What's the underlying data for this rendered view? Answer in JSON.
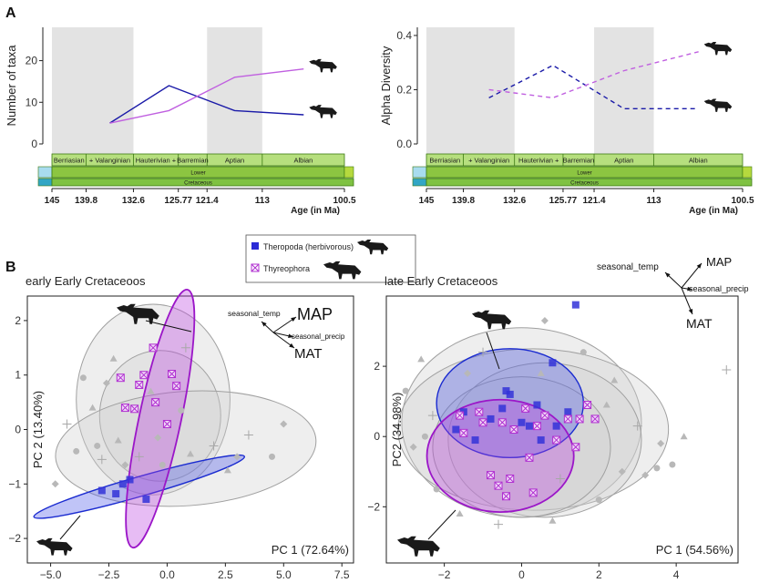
{
  "panel_a_letter": "A",
  "panel_b_letter": "B",
  "legend": {
    "entries": [
      {
        "label": "Theropoda (herbivorous)",
        "color": "#2b2bd6",
        "marker": "filled-square"
      },
      {
        "label": "Thyreophora",
        "color": "#b030d0",
        "marker": "crossed-square"
      }
    ]
  },
  "colors": {
    "theropoda": "#1a1aa8",
    "thyreophora": "#c060e0",
    "theropoda_ellipse_fill": "#4a56e8",
    "thyreophora_ellipse_fill": "#b93fe0",
    "thyreophora_ellipse_stroke": "#9b16c8",
    "background_points": "#b8b8b8",
    "stage_shade": "#e3e3e3",
    "stage_green": "#b6df7e",
    "lower_green": "#8cc541"
  },
  "icons": [
    "dinosaur-silhouette-icon",
    "sauropod-silhouette-icon",
    "theropod-silhouette-icon"
  ],
  "timescale": {
    "stages": [
      "Berriasian",
      "+ Valanginian",
      "Hauterivian +",
      "Barremian",
      "Aptian",
      "Albian"
    ],
    "series": "Lower",
    "period": "Cretaceous",
    "ages": [
      "145",
      "139.8",
      "132.6",
      "125.77",
      "121.4",
      "113",
      "100.5"
    ],
    "xlabel": "Age (in Ma)"
  },
  "chart_data": [
    {
      "type": "line",
      "ylabel": "Number of taxa",
      "yticks": [
        "0",
        "10",
        "20"
      ],
      "ylim": [
        0,
        28
      ],
      "x": [
        136.2,
        127.2,
        117.2,
        106.7
      ],
      "series": [
        {
          "group": "theropoda",
          "style": "solid",
          "values": [
            5,
            14,
            8,
            7
          ]
        },
        {
          "group": "thyreophora",
          "style": "solid",
          "values": [
            5,
            8,
            16,
            18
          ]
        }
      ],
      "shaded_ranges": [
        [
          145,
          132.6
        ],
        [
          121.4,
          113
        ]
      ]
    },
    {
      "type": "line",
      "ylabel": "Alpha Diversity",
      "yticks": [
        "0.0",
        "0.2",
        "0.4"
      ],
      "ylim": [
        0,
        0.43
      ],
      "x": [
        136.2,
        127.2,
        117.2,
        106.7
      ],
      "series": [
        {
          "group": "theropoda",
          "style": "dashed",
          "values": [
            0.17,
            0.29,
            0.13,
            0.13
          ]
        },
        {
          "group": "thyreophora",
          "style": "dashed",
          "values": [
            0.2,
            0.17,
            0.27,
            0.34
          ]
        }
      ],
      "shaded_ranges": [
        [
          145,
          132.6
        ],
        [
          121.4,
          113
        ]
      ]
    },
    {
      "type": "scatter",
      "title": "early Early Cretaceoos",
      "xlabel": "PC 1 (72.64%)",
      "ylabel": "PC 2 (13.40%)",
      "xticks": [
        "−5.0",
        "−2.5",
        "0.0",
        "2.5",
        "5.0",
        "7.5"
      ],
      "xtick_values": [
        -5,
        -2.5,
        0,
        2.5,
        5,
        7.5
      ],
      "yticks": [
        "−2",
        "−1",
        "0",
        "1",
        "2"
      ],
      "ytick_values": [
        -2,
        -1,
        0,
        1,
        2
      ],
      "xlim": [
        -6,
        8
      ],
      "ylim": [
        -2.45,
        2.45
      ],
      "loading_labels": [
        "MAP",
        "seasonal_temp",
        "seasonal_precip",
        "MAT"
      ],
      "ellipses": [
        {
          "group": "other",
          "cx": -0.6,
          "cy": 0.55,
          "rx": 3.3,
          "ry": 1.75,
          "rot": 0
        },
        {
          "group": "other",
          "cx": -0.3,
          "cy": 0.25,
          "rx": 2.6,
          "ry": 1.2,
          "rot": 0
        },
        {
          "group": "other",
          "cx": 0.8,
          "cy": -0.35,
          "rx": 5.6,
          "ry": 1.05,
          "rot": 4
        },
        {
          "group": "theropoda",
          "cx": -1.2,
          "cy": -1.05,
          "rx": 4.7,
          "ry": 0.18,
          "rot": 16
        },
        {
          "group": "thyreophora",
          "cx": -0.3,
          "cy": 0.2,
          "rx": 0.9,
          "ry": 2.42,
          "rot": -12
        }
      ],
      "points": {
        "theropoda": [
          [
            -2.8,
            -1.12
          ],
          [
            -2.2,
            -1.18
          ],
          [
            -1.6,
            -0.92
          ],
          [
            -0.9,
            -1.28
          ],
          [
            -1.9,
            -1.0
          ]
        ],
        "thyreophora": [
          [
            -2.0,
            0.95
          ],
          [
            -0.6,
            1.5
          ],
          [
            0.2,
            1.02
          ],
          [
            -1.2,
            0.82
          ],
          [
            -0.5,
            0.5
          ],
          [
            0.0,
            0.1
          ],
          [
            -1.4,
            0.38
          ],
          [
            0.4,
            0.8
          ],
          [
            -1.0,
            1.0
          ],
          [
            -1.8,
            0.4
          ]
        ],
        "other": [
          [
            -3.6,
            0.95
          ],
          [
            -3.2,
            0.4
          ],
          [
            -4.3,
            0.1
          ],
          [
            -2.6,
            0.85
          ],
          [
            -3.0,
            -0.3
          ],
          [
            -2.3,
            1.3
          ],
          [
            -1.2,
            -0.5
          ],
          [
            -0.4,
            -0.15
          ],
          [
            0.6,
            0.35
          ],
          [
            1.0,
            -0.45
          ],
          [
            -2.8,
            -0.55
          ],
          [
            -1.8,
            -0.65
          ],
          [
            -0.2,
            -0.65
          ],
          [
            2.6,
            -0.75
          ],
          [
            3.5,
            -0.1
          ],
          [
            5.0,
            0.1
          ],
          [
            4.5,
            -0.5
          ],
          [
            -0.7,
            0.7
          ],
          [
            0.8,
            1.5
          ],
          [
            -4.8,
            -1.0
          ],
          [
            -3.9,
            -0.4
          ],
          [
            -2.1,
            -0.2
          ],
          [
            2.0,
            -0.3
          ],
          [
            3.0,
            -0.5
          ]
        ]
      }
    },
    {
      "type": "scatter",
      "title": "late Early Cretaceoos",
      "xlabel": "PC 1 (54.56%)",
      "ylabel": "PC2 (34.98%)",
      "xticks": [
        "−2",
        "0",
        "2",
        "4"
      ],
      "xtick_values": [
        -2,
        0,
        2,
        4
      ],
      "yticks": [
        "−2",
        "0",
        "2"
      ],
      "ytick_values": [
        -2,
        0,
        2
      ],
      "xlim": [
        -3.5,
        5.6
      ],
      "ylim": [
        -3.6,
        4.0
      ],
      "loading_labels": [
        "MAP",
        "seasonal_temp",
        "seasonal_precip",
        "MAT"
      ],
      "ellipses": [
        {
          "group": "other",
          "cx": 0.0,
          "cy": 0.4,
          "rx": 3.1,
          "ry": 2.7,
          "rot": 0
        },
        {
          "group": "other",
          "cx": 0.3,
          "cy": 0.2,
          "rx": 3.5,
          "ry": 2.3,
          "rot": 0
        },
        {
          "group": "other",
          "cx": 0.6,
          "cy": -0.1,
          "rx": 2.5,
          "ry": 2.2,
          "rot": 0
        },
        {
          "group": "other",
          "cx": 0.0,
          "cy": -0.3,
          "rx": 2.3,
          "ry": 2.0,
          "rot": 0
        },
        {
          "group": "theropoda",
          "cx": -0.3,
          "cy": 0.95,
          "rx": 1.9,
          "ry": 1.55,
          "rot": 0
        },
        {
          "group": "thyreophora",
          "cx": -0.55,
          "cy": -0.55,
          "rx": 1.9,
          "ry": 1.6,
          "rot": 0
        }
      ],
      "points": {
        "theropoda": [
          [
            1.4,
            3.75
          ],
          [
            -1.5,
            0.7
          ],
          [
            -1.7,
            0.2
          ],
          [
            -0.5,
            0.8
          ],
          [
            0.0,
            0.4
          ],
          [
            0.2,
            0.3
          ],
          [
            0.9,
            0.3
          ],
          [
            1.2,
            0.7
          ],
          [
            0.8,
            2.1
          ],
          [
            -0.3,
            1.2
          ],
          [
            -0.8,
            0.5
          ],
          [
            -1.2,
            -0.1
          ],
          [
            0.5,
            -0.1
          ],
          [
            -0.4,
            1.3
          ],
          [
            0.4,
            0.9
          ]
        ],
        "thyreophora": [
          [
            -1.5,
            0.1
          ],
          [
            -1.0,
            0.4
          ],
          [
            -0.5,
            0.4
          ],
          [
            0.1,
            0.8
          ],
          [
            0.6,
            0.6
          ],
          [
            1.2,
            0.5
          ],
          [
            1.4,
            -0.3
          ],
          [
            -0.8,
            -1.1
          ],
          [
            -0.4,
            -1.7
          ],
          [
            -0.6,
            -1.4
          ],
          [
            0.2,
            -0.6
          ],
          [
            0.9,
            -0.1
          ],
          [
            1.5,
            0.5
          ],
          [
            -1.1,
            0.7
          ],
          [
            -0.2,
            0.2
          ],
          [
            0.4,
            0.3
          ],
          [
            -1.6,
            0.6
          ],
          [
            1.7,
            0.9
          ],
          [
            1.9,
            0.5
          ],
          [
            0.6,
            0.6
          ],
          [
            -0.3,
            -1.2
          ],
          [
            0.3,
            -1.6
          ]
        ],
        "other": [
          [
            -3.0,
            1.3
          ],
          [
            -2.6,
            2.2
          ],
          [
            -2.3,
            0.6
          ],
          [
            -2.8,
            -0.3
          ],
          [
            -2.2,
            -1.5
          ],
          [
            -1.6,
            -2.2
          ],
          [
            -1.0,
            2.4
          ],
          [
            0.6,
            3.3
          ],
          [
            1.6,
            2.4
          ],
          [
            2.4,
            1.6
          ],
          [
            3.0,
            0.3
          ],
          [
            3.6,
            -0.2
          ],
          [
            3.9,
            -0.8
          ],
          [
            4.2,
            0.0
          ],
          [
            5.3,
            1.9
          ],
          [
            2.6,
            -1.0
          ],
          [
            2.0,
            -1.8
          ],
          [
            0.8,
            -2.4
          ],
          [
            -0.6,
            -2.5
          ],
          [
            3.2,
            -1.1
          ],
          [
            3.5,
            -0.9
          ],
          [
            2.2,
            0.9
          ],
          [
            1.0,
            -1.2
          ],
          [
            -1.4,
            1.8
          ],
          [
            -2.5,
            0.0
          ],
          [
            0.5,
            1.8
          ]
        ]
      }
    }
  ]
}
